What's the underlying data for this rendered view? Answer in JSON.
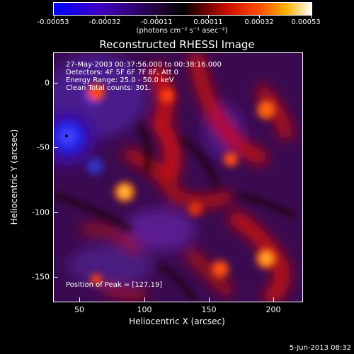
{
  "colorbar": {
    "ticks": [
      "-0.00053",
      "-0.00032",
      "-0.00011",
      "0.00011",
      "0.00032",
      "0.00053"
    ],
    "units": "(photons cm⁻² s⁻¹ asec⁻²)"
  },
  "title": "Reconstructed RHESSI Image",
  "info": {
    "time_range": "27-May-2003 00:37:56.000 to 00:38:16.000",
    "detectors": "Detectors: 4F 5F 6F 7F 8F, Att 0",
    "energy": "Energy Range: 25.0 - 50.0 keV",
    "clean": "Clean    Total counts: 301.",
    "peak": "Position of Peak = [127,19]"
  },
  "axes": {
    "x_label": "Heliocentric X (arcsec)",
    "y_label": "Heliocentric Y (arcsec)",
    "x_ticks": [
      "50",
      "100",
      "150",
      "200"
    ],
    "y_ticks": [
      "0",
      "-50",
      "-100",
      "-150"
    ],
    "x_range": [
      30,
      222
    ],
    "y_range": [
      -170,
      22
    ]
  },
  "footer": {
    "date": "5-Jun-2013 08:32"
  },
  "colors": {
    "negative": "#0000ff",
    "zero": "#000000",
    "positive": "#ff4000",
    "peak": "#ffffff"
  }
}
